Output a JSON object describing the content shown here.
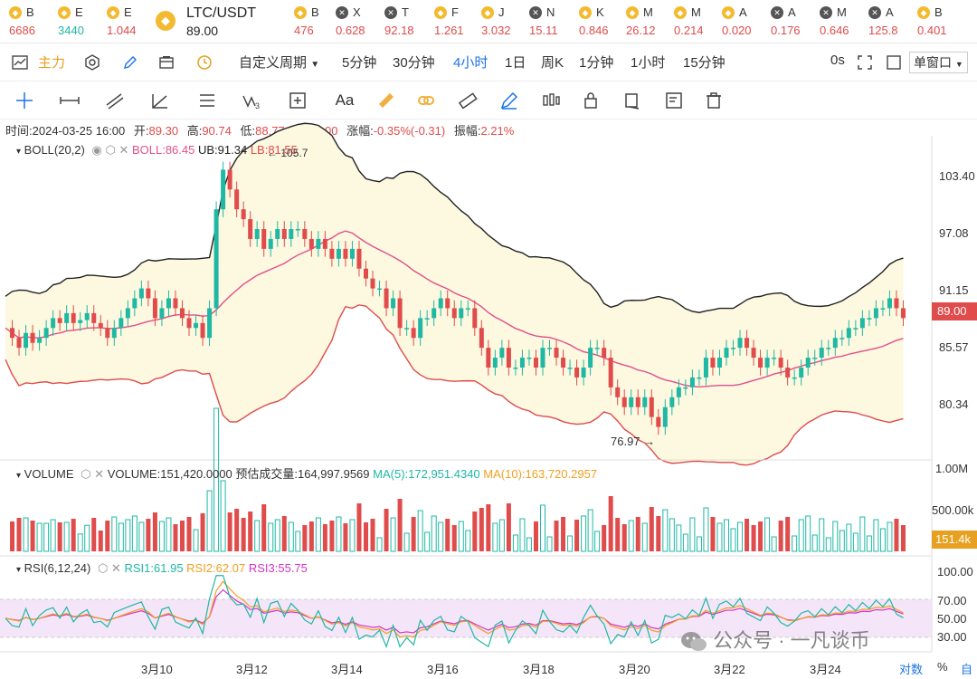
{
  "ticker": [
    {
      "sym": "B",
      "price": "6686",
      "color": "#e04b4b",
      "icon": "binance-icon"
    },
    {
      "sym": "E",
      "price": "3440",
      "color": "#1fb8a5",
      "icon": "binance-icon"
    },
    {
      "sym": "E",
      "price": "1.044",
      "color": "#e04b4b",
      "icon": "binance-icon"
    },
    {
      "sym": "B",
      "price": "476",
      "color": "#e04b4b",
      "icon": "binance-icon"
    },
    {
      "sym": "X",
      "price": "0.628",
      "color": "#e04b4b",
      "icon": "x-icon"
    },
    {
      "sym": "T",
      "price": "92.18",
      "color": "#e04b4b",
      "icon": "x-icon"
    },
    {
      "sym": "F",
      "price": "1.261",
      "color": "#e04b4b",
      "icon": "binance-icon"
    },
    {
      "sym": "J",
      "price": "3.032",
      "color": "#e04b4b",
      "icon": "binance-icon"
    },
    {
      "sym": "N",
      "price": "15.11",
      "color": "#e04b4b",
      "icon": "x-icon"
    },
    {
      "sym": "K",
      "price": "0.846",
      "color": "#e04b4b",
      "icon": "binance-icon"
    },
    {
      "sym": "M",
      "price": "26.12",
      "color": "#e04b4b",
      "icon": "binance-icon"
    },
    {
      "sym": "M",
      "price": "0.214",
      "color": "#e04b4b",
      "icon": "binance-icon"
    },
    {
      "sym": "A",
      "price": "0.020",
      "color": "#e04b4b",
      "icon": "binance-icon"
    },
    {
      "sym": "A",
      "price": "0.176",
      "color": "#e04b4b",
      "icon": "x-icon"
    },
    {
      "sym": "M",
      "price": "0.646",
      "color": "#e04b4b",
      "icon": "x-icon"
    },
    {
      "sym": "A",
      "price": "125.8",
      "color": "#e04b4b",
      "icon": "x-icon"
    },
    {
      "sym": "B",
      "price": "0.401",
      "color": "#e04b4b",
      "icon": "binance-icon"
    }
  ],
  "active": {
    "symbol": "LTC/USDT",
    "price": "89.00"
  },
  "toolbar": {
    "main_label": "主力",
    "custom_period": "自定义周期",
    "intervals": [
      "5分钟",
      "30分钟",
      "4小时",
      "1日",
      "周K",
      "1分钟",
      "1小时",
      "15分钟"
    ],
    "active_interval": "4小时",
    "countdown": "0s",
    "window_mode": "单窗口"
  },
  "info": {
    "time_label": "时间:",
    "time": "2024-03-25 16:00",
    "open_label": "开:",
    "open": "89.30",
    "high_label": "高:",
    "high": "90.74",
    "low_label": "低:",
    "low": "88.77",
    "close_label": "收:",
    "close": "89.00",
    "change_label": "涨幅:",
    "change": "-0.35%(-0.31)",
    "amp_label": "振幅:",
    "amp": "2.21%"
  },
  "boll": {
    "name": "BOLL(20,2)",
    "mid": "BOLL:86.45",
    "ub": "UB:91.34",
    "lb": "LB:81.55"
  },
  "volume": {
    "name": "VOLUME",
    "vol": "VOLUME:151,420.0000",
    "est": "预估成交量:164,997.9569",
    "ma5": "MA(5):172,951.4340",
    "ma10": "MA(10):163,720.2957"
  },
  "rsi": {
    "name": "RSI(6,12,24)",
    "r1": "RSI1:61.95",
    "r2": "RSI2:62.07",
    "r3": "RSI3:55.75"
  },
  "price_axis": [
    "103.40",
    "97.08",
    "91.15",
    "85.57",
    "80.34"
  ],
  "current_price_tag": "89.00",
  "vol_axis": [
    "1.00M",
    "500.00k"
  ],
  "vol_tag": "151.4k",
  "rsi_axis": [
    "100.00",
    "70.00",
    "50.00",
    "30.00"
  ],
  "date_axis": [
    "3月10",
    "3月12",
    "3月14",
    "3月16",
    "3月18",
    "3月20",
    "3月22",
    "3月24"
  ],
  "high_mark": "105.7",
  "low_mark": "76.97",
  "footer": {
    "log": "对数",
    "pct": "%",
    "auto": "自"
  },
  "watermark": "公众号 · 一凡谈币",
  "colors": {
    "up": "#1fb8a5",
    "down": "#e04b4b",
    "accent": "#1a73e8",
    "band": "#fdf8e0"
  }
}
